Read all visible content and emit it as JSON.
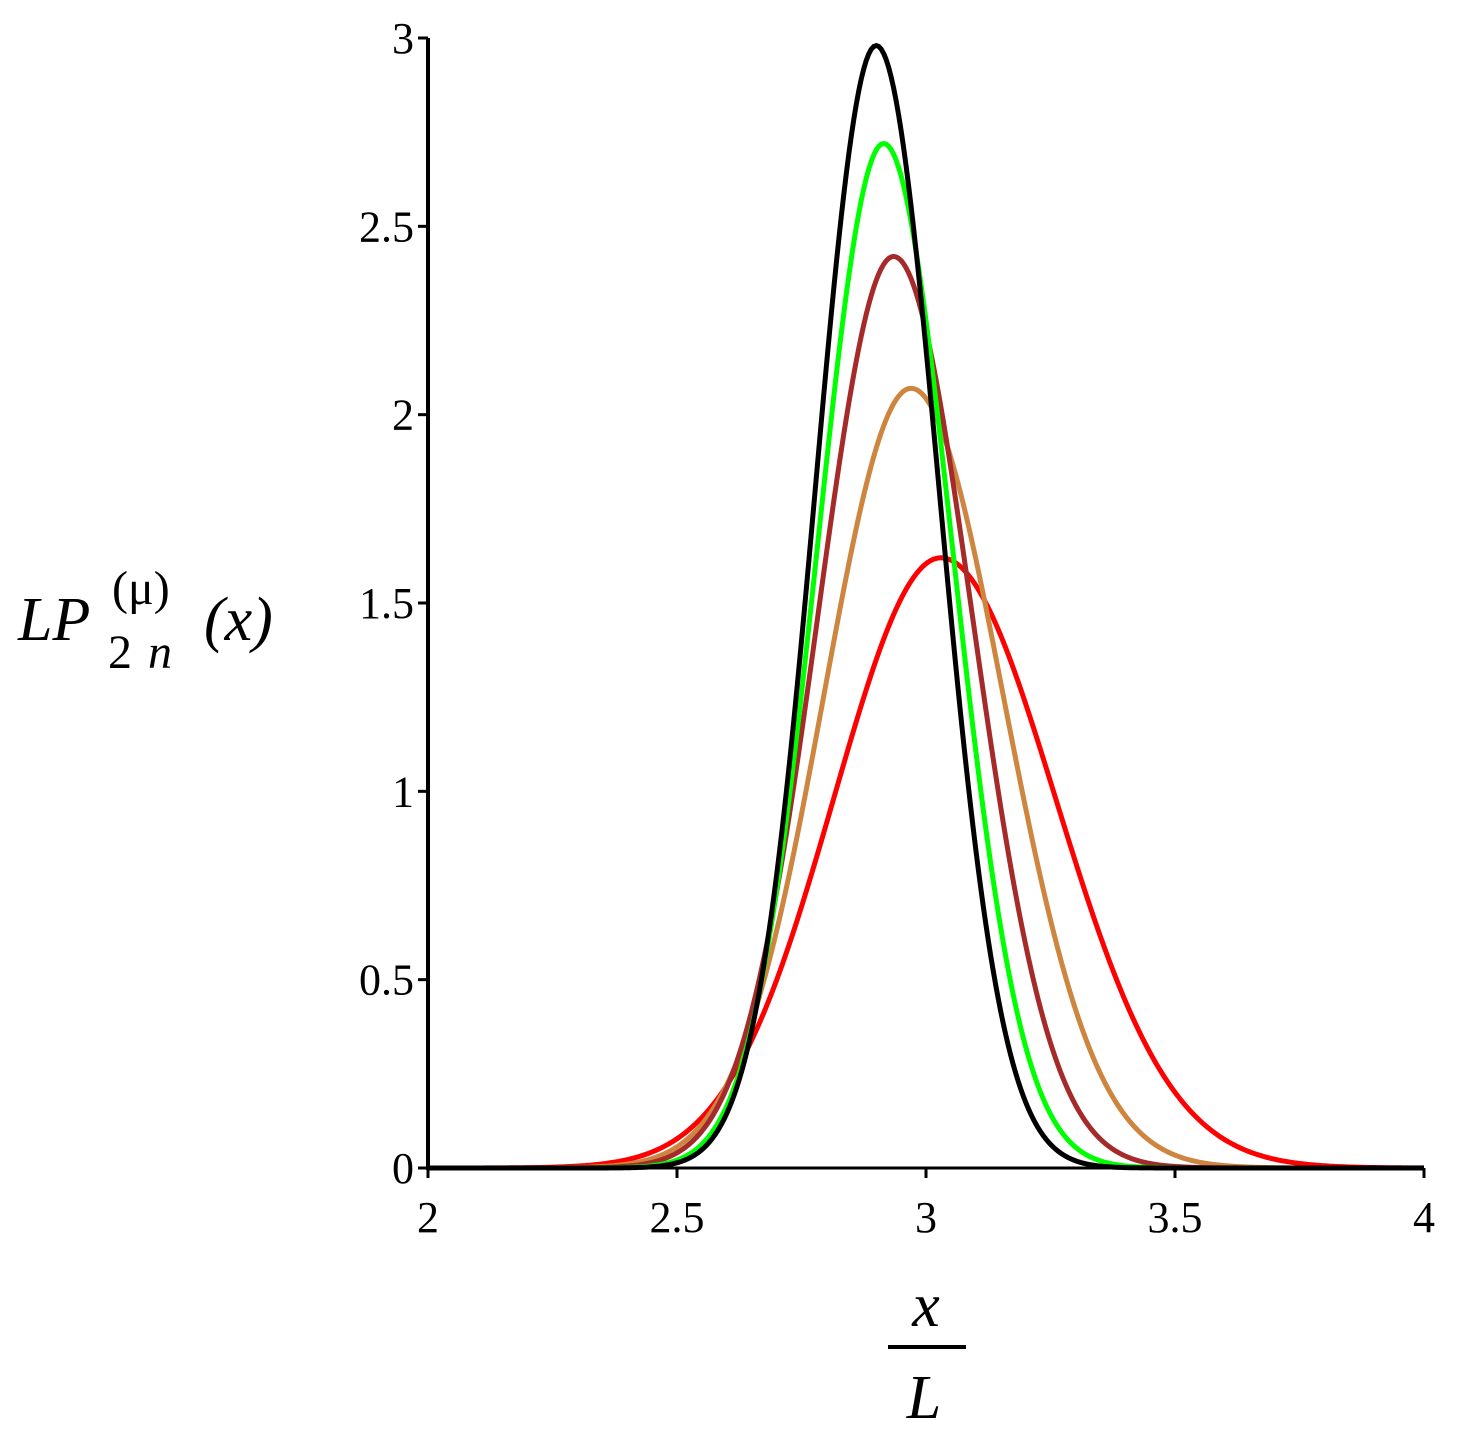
{
  "chart_data": {
    "type": "line",
    "xlim": [
      2,
      4
    ],
    "ylim": [
      0,
      3
    ],
    "x_ticks": [
      "2",
      "2.5",
      "3",
      "3.5",
      "4"
    ],
    "y_ticks": [
      "0",
      "0.5",
      "1",
      "1.5",
      "2",
      "2.5",
      "3"
    ],
    "xlabel": {
      "numerator": "x",
      "denominator": "L"
    },
    "ylabel": {
      "main": "LP",
      "superscript": "(μ)",
      "subscript_num": "2",
      "subscript_var": "n",
      "argument": "(x)"
    },
    "grid": false,
    "legend": "none",
    "series": [
      {
        "color": "#ff0000",
        "peak_x": 3.03,
        "peak_y": 1.62,
        "sigma_left": 0.215,
        "sigma_right": 0.23
      },
      {
        "color": "#cd853f",
        "peak_x": 2.97,
        "peak_y": 2.07,
        "sigma_left": 0.175,
        "sigma_right": 0.185
      },
      {
        "color": "#a52a2a",
        "peak_x": 2.935,
        "peak_y": 2.42,
        "sigma_left": 0.152,
        "sigma_right": 0.158
      },
      {
        "color": "#00ff00",
        "peak_x": 2.915,
        "peak_y": 2.72,
        "sigma_left": 0.133,
        "sigma_right": 0.138
      },
      {
        "color": "#000000",
        "peak_x": 2.9,
        "peak_y": 2.98,
        "sigma_left": 0.122,
        "sigma_right": 0.126
      }
    ]
  }
}
